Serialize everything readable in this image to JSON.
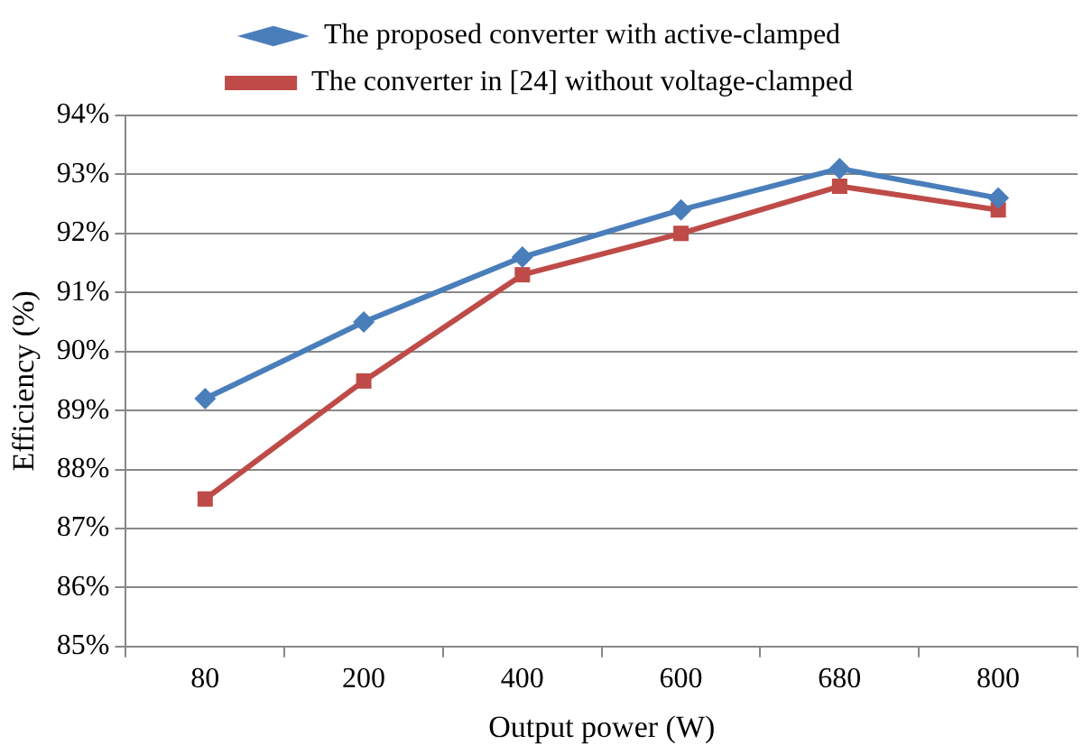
{
  "chart_data": {
    "type": "line",
    "xlabel": "Output power (W)",
    "ylabel": "Efficiency (%)",
    "categories": [
      "80",
      "200",
      "400",
      "600",
      "680",
      "800"
    ],
    "series": [
      {
        "name": "The proposed converter with active-clamped",
        "color": "#4a7ebb",
        "marker": "diamond",
        "values": [
          89.2,
          90.5,
          91.6,
          92.4,
          93.1,
          92.6
        ]
      },
      {
        "name": "The converter in [24] without voltage-clamped",
        "color": "#be4b48",
        "marker": "square",
        "values": [
          87.5,
          89.5,
          91.3,
          92.0,
          92.8,
          92.4
        ]
      }
    ],
    "ylim": [
      85,
      94
    ],
    "yticks": [
      {
        "value": 85,
        "label": "85%"
      },
      {
        "value": 86,
        "label": "86%"
      },
      {
        "value": 87,
        "label": "87%"
      },
      {
        "value": 88,
        "label": "88%"
      },
      {
        "value": 89,
        "label": "89%"
      },
      {
        "value": 90,
        "label": "90%"
      },
      {
        "value": 91,
        "label": "91%"
      },
      {
        "value": 92,
        "label": "92%"
      },
      {
        "value": 93,
        "label": "93%"
      },
      {
        "value": 94,
        "label": "94%"
      }
    ],
    "grid": "y",
    "legend": "top",
    "line_style": "solid"
  }
}
